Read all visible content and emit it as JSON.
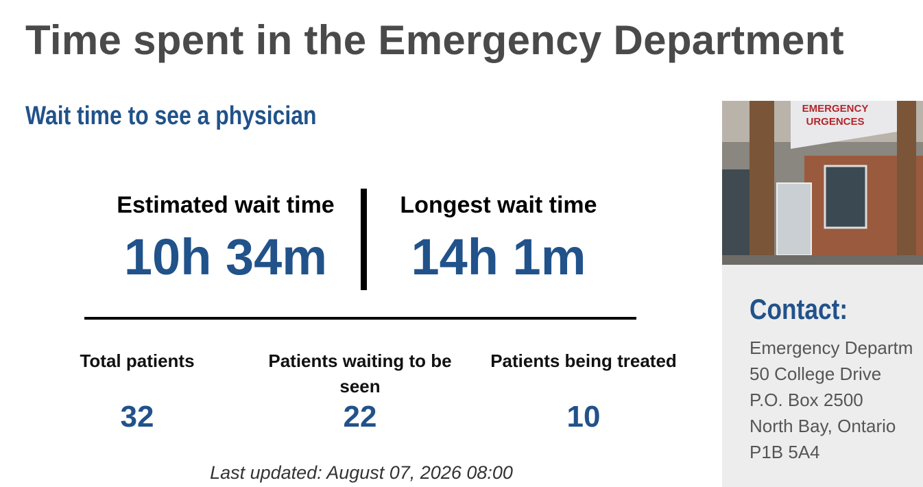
{
  "header": {
    "title": "Time spent in the Emergency Department"
  },
  "wait_section": {
    "title": "Wait time to see a physician",
    "estimated": {
      "label": "Estimated wait time",
      "value": "10h 34m"
    },
    "longest": {
      "label": "Longest wait time",
      "value": "14h 1m"
    },
    "stats": [
      {
        "label": "Total patients",
        "value": 32
      },
      {
        "label": "Patients waiting to be seen",
        "value": 22
      },
      {
        "label": "Patients being treated",
        "value": 10
      }
    ],
    "last_updated": "Last updated: August 07, 2026 08:00"
  },
  "sidebar": {
    "photo": {
      "sign_lines": [
        "EMERGENCY",
        "URGENCES"
      ]
    },
    "contact_title": "Contact:",
    "address": [
      "Emergency Departm",
      "50 College Drive",
      "P.O. Box 2500",
      "North Bay, Ontario",
      "P1B 5A4"
    ]
  }
}
